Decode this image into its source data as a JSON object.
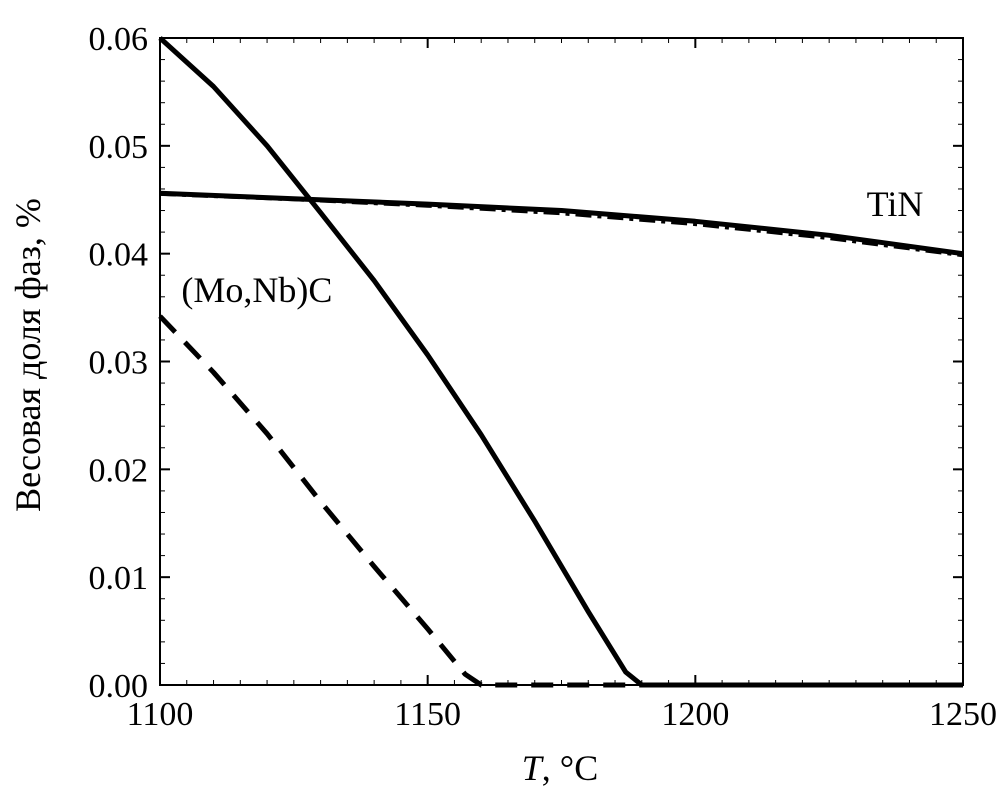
{
  "chart_data": {
    "type": "line",
    "xlabel_var": "T",
    "xlabel_unit": ", °C",
    "ylabel": "Весовая доля фаз, %",
    "xlim": [
      1100,
      1250
    ],
    "ylim": [
      0.0,
      0.06
    ],
    "x_ticks": [
      {
        "value": 1100,
        "label": "1100"
      },
      {
        "value": 1150,
        "label": "1150"
      },
      {
        "value": 1200,
        "label": "1200"
      },
      {
        "value": 1250,
        "label": "1250"
      }
    ],
    "y_ticks": [
      {
        "value": 0.0,
        "label": "0.00"
      },
      {
        "value": 0.01,
        "label": "0.01"
      },
      {
        "value": 0.02,
        "label": "0.02"
      },
      {
        "value": 0.03,
        "label": "0.03"
      },
      {
        "value": 0.04,
        "label": "0.04"
      },
      {
        "value": 0.05,
        "label": "0.05"
      },
      {
        "value": 0.06,
        "label": "0.06"
      }
    ],
    "series": [
      {
        "id": "solid-steep",
        "style": "solid",
        "points": [
          [
            1100,
            0.06
          ],
          [
            1110,
            0.0555
          ],
          [
            1120,
            0.05
          ],
          [
            1130,
            0.0438
          ],
          [
            1140,
            0.0375
          ],
          [
            1150,
            0.0306
          ],
          [
            1160,
            0.0232
          ],
          [
            1170,
            0.0152
          ],
          [
            1180,
            0.0068
          ],
          [
            1187,
            0.0012
          ],
          [
            1190,
            0.0
          ],
          [
            1250,
            0.0
          ]
        ]
      },
      {
        "id": "tin-solid",
        "style": "solid",
        "points": [
          [
            1100,
            0.0456
          ],
          [
            1125,
            0.0451
          ],
          [
            1150,
            0.0446
          ],
          [
            1175,
            0.044
          ],
          [
            1200,
            0.043
          ],
          [
            1225,
            0.0417
          ],
          [
            1250,
            0.04
          ]
        ]
      },
      {
        "id": "tin-dashdot",
        "style": "dashdot",
        "points": [
          [
            1100,
            0.0455
          ],
          [
            1125,
            0.045
          ],
          [
            1150,
            0.0444
          ],
          [
            1175,
            0.0437
          ],
          [
            1200,
            0.0427
          ],
          [
            1225,
            0.0414
          ],
          [
            1250,
            0.0398
          ]
        ]
      },
      {
        "id": "mo-nb-c-dashed",
        "style": "dashed",
        "points": [
          [
            1100,
            0.0342
          ],
          [
            1110,
            0.029
          ],
          [
            1120,
            0.0233
          ],
          [
            1130,
            0.017
          ],
          [
            1140,
            0.011
          ],
          [
            1150,
            0.0052
          ],
          [
            1157,
            0.001
          ],
          [
            1160,
            0.0
          ],
          [
            1190,
            0.0
          ],
          [
            1250,
            0.0
          ]
        ]
      }
    ],
    "annotations": [
      {
        "id": "tin",
        "text": "TiN",
        "x": 1232,
        "y": 0.0435
      },
      {
        "id": "mo-nb-c",
        "text": "(Mo,Nb)C",
        "x": 1104,
        "y": 0.0355
      }
    ]
  }
}
